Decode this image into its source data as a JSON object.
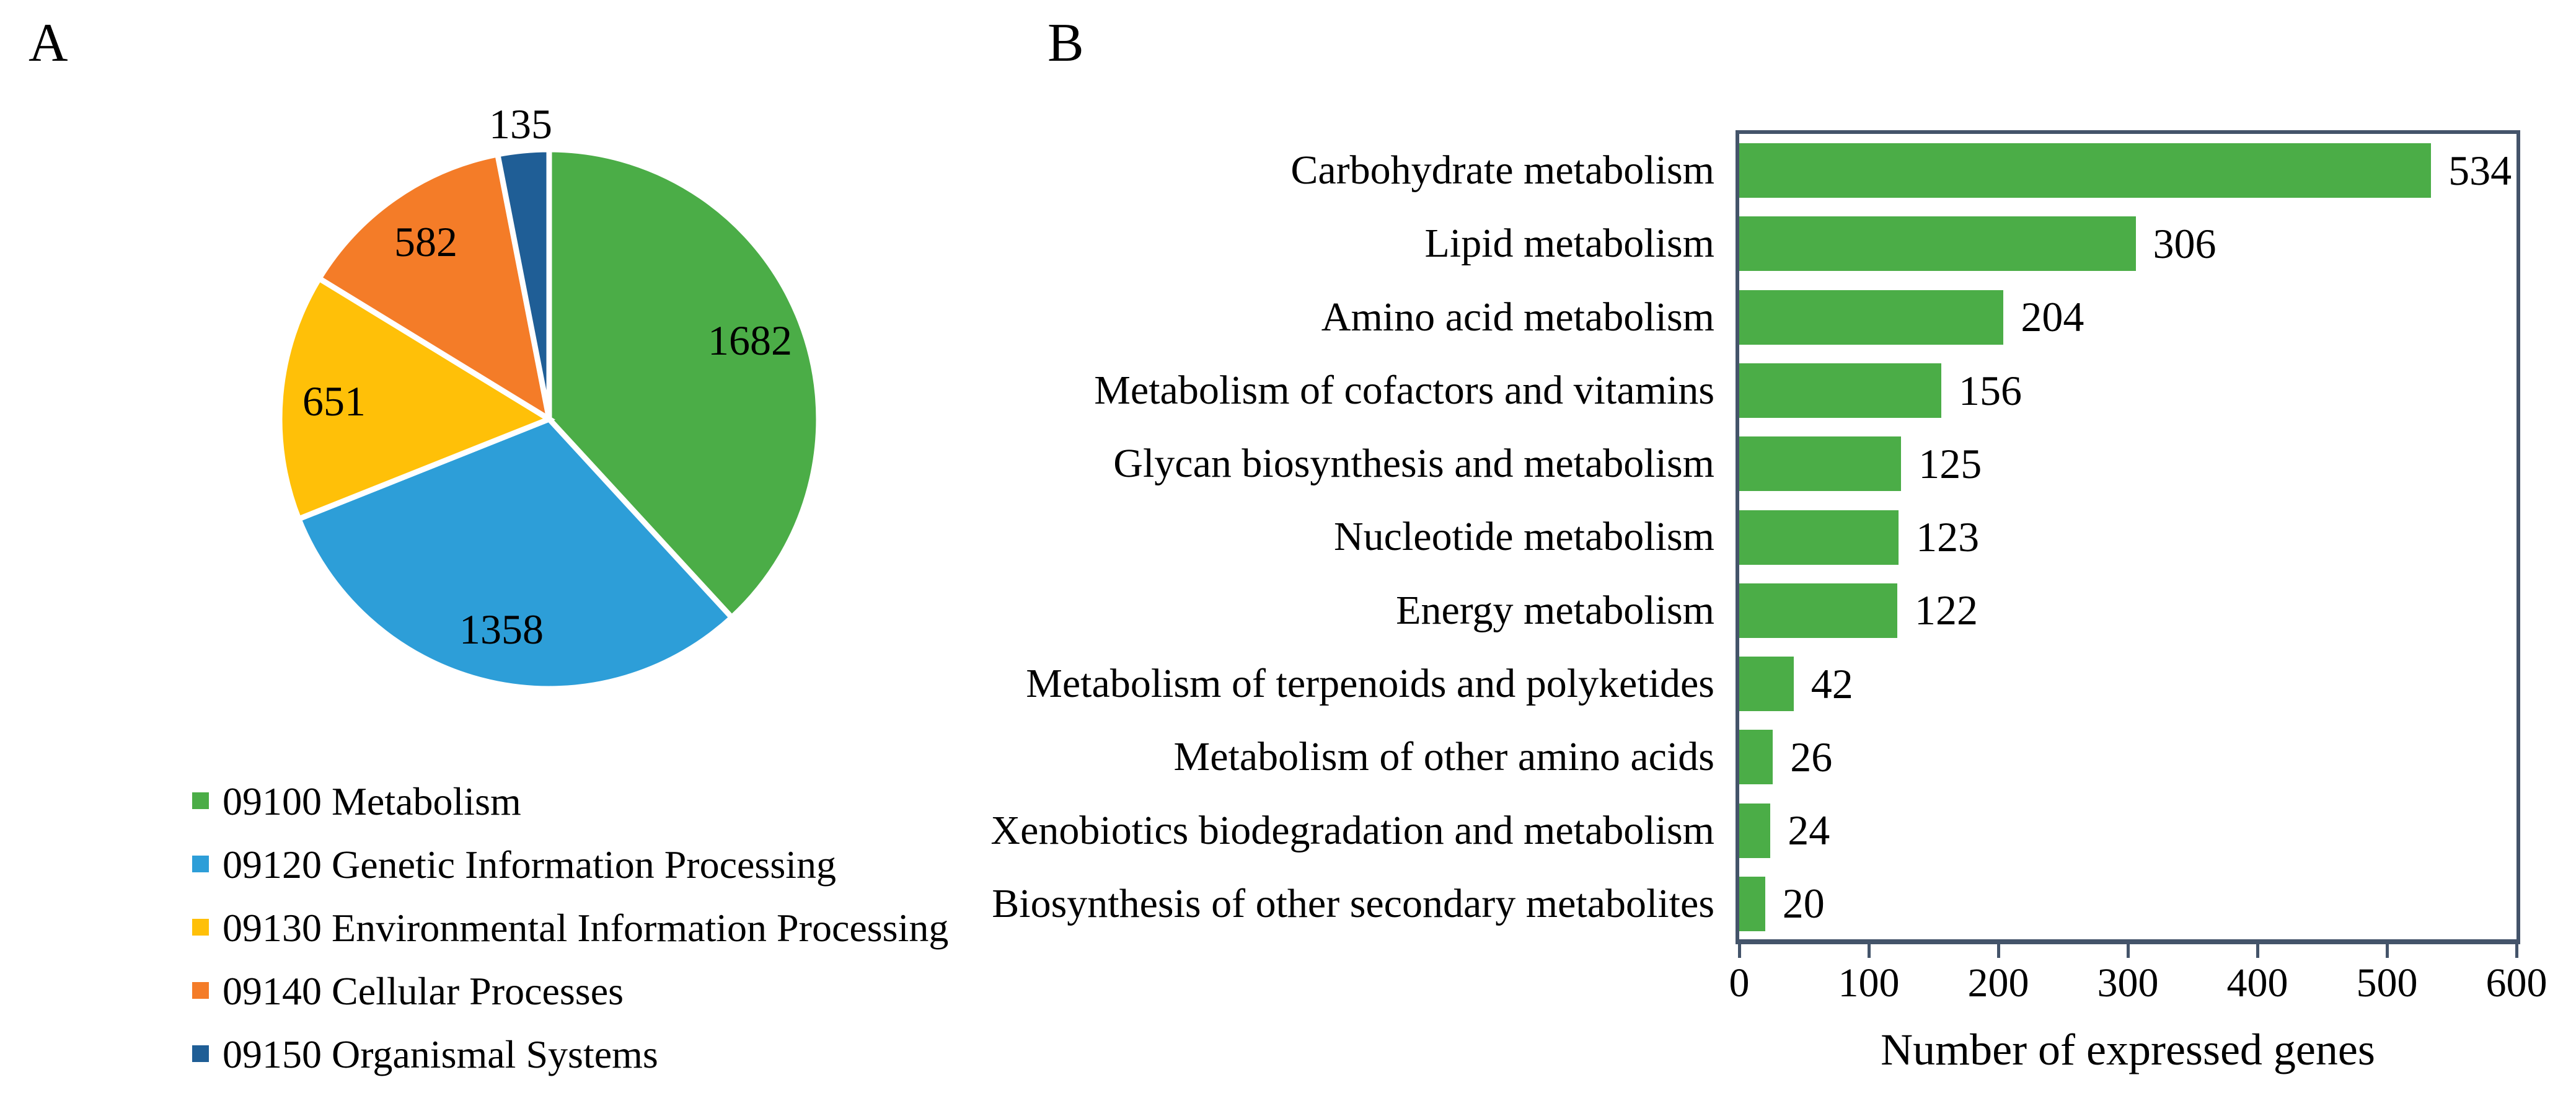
{
  "panel_a": {
    "label": "A"
  },
  "panel_b": {
    "label": "B"
  },
  "colors": {
    "pie_green": "#4BAD47",
    "pie_blue": "#2D9ED8",
    "pie_yellow": "#FFC008",
    "pie_orange": "#F47C28",
    "pie_navy": "#1F5E96",
    "bar_green": "#4BAD47",
    "frame": "#44546A",
    "text": "#000000",
    "slice_separator": "#FFFFFF"
  },
  "chart_data": [
    {
      "type": "pie",
      "title": "",
      "slices": [
        {
          "label": "09100 Metabolism",
          "value": 1682,
          "color": "#4BAD47",
          "label_outside": false
        },
        {
          "label": "09120 Genetic Information Processing",
          "value": 1358,
          "color": "#2D9ED8",
          "label_outside": false
        },
        {
          "label": "09130 Environmental Information Processing",
          "value": 651,
          "color": "#FFC008",
          "label_outside": false
        },
        {
          "label": "09140 Cellular Processes",
          "value": 582,
          "color": "#F47C28",
          "label_outside": false
        },
        {
          "label": "09150 Organismal Systems",
          "value": 135,
          "color": "#1F5E96",
          "label_outside": true
        }
      ],
      "start_angle_deg": 0,
      "direction": "clockwise",
      "legend_position": "bottom-left",
      "value_labels_shown": [
        1682,
        1358,
        651,
        582,
        135
      ]
    },
    {
      "type": "bar",
      "orientation": "horizontal",
      "categories": [
        "Carbohydrate metabolism",
        "Lipid metabolism",
        "Amino acid metabolism",
        "Metabolism of cofactors and vitamins",
        "Glycan biosynthesis and metabolism",
        "Nucleotide metabolism",
        "Energy metabolism",
        "Metabolism of terpenoids and polyketides",
        "Metabolism of other amino acids",
        "Xenobiotics biodegradation and metabolism",
        "Biosynthesis of other secondary metabolites"
      ],
      "values": [
        534,
        306,
        204,
        156,
        125,
        123,
        122,
        42,
        26,
        24,
        20
      ],
      "bar_color": "#4BAD47",
      "xlabel": "Number of expressed genes",
      "ylabel": "",
      "xlim": [
        0,
        600
      ],
      "xticks": [
        0,
        100,
        200,
        300,
        400,
        500,
        600
      ],
      "grid": false,
      "value_labels": true
    }
  ]
}
